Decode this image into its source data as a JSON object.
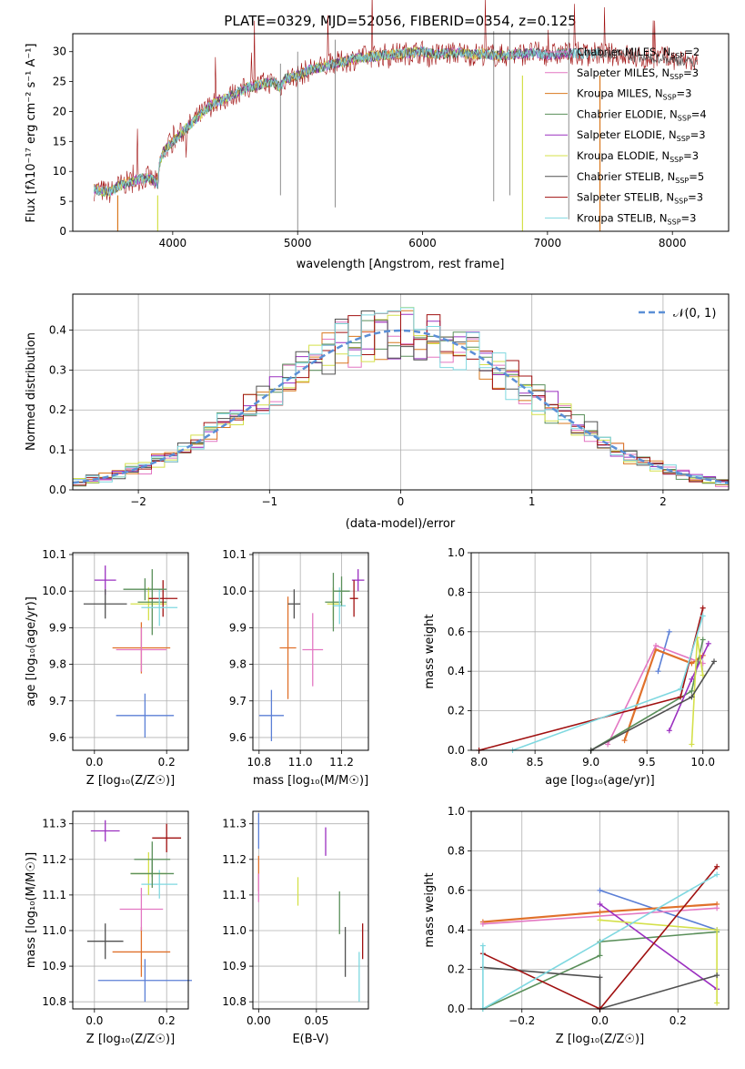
{
  "colors": {
    "Chabrier MILES": "#e377c2",
    "Salpeter MILES": "#e377c2",
    "Kroupa MILES": "#d9781e",
    "Chabrier ELODIE": "#5a8f5a",
    "Salpeter ELODIE": "#9b30c0",
    "Kroupa ELODIE": "#d4e04a",
    "Chabrier STELIB": "#505050",
    "Salpeter STELIB": "#a01010",
    "Kroupa STELIB": "#7fd8e0",
    "blue": "#5b7fd6",
    "orange": "#e0712b"
  },
  "chart_data": [
    {
      "type": "line",
      "title": "PLATE=0329, MJD=52056, FIBERID=0354, z=0.125",
      "xlabel": "wavelength [Angstrom, rest frame]",
      "ylabel": "Flux [fλ10⁻¹⁷ erg cm⁻² s⁻¹ A⁻¹]",
      "xlim": [
        3200,
        8450
      ],
      "ylim": [
        0,
        33
      ],
      "xticks": [
        "4000",
        "5000",
        "6000",
        "7000",
        "8000"
      ],
      "yticks": [
        "0",
        "5",
        "10",
        "15",
        "20",
        "25",
        "30"
      ],
      "legend": {
        "placement": "top-right",
        "entries": [
          {
            "pre": "Chabrier MILES, N",
            "post": "=2"
          },
          {
            "pre": "Salpeter MILES, N",
            "post": "=3"
          },
          {
            "pre": "Kroupa MILES, N",
            "post": "=3"
          },
          {
            "pre": "Chabrier ELODIE, N",
            "post": "=4"
          },
          {
            "pre": "Salpeter ELODIE, N",
            "post": "=3"
          },
          {
            "pre": "Kroupa ELODIE, N",
            "post": "=3"
          },
          {
            "pre": "Chabrier STELIB, N",
            "post": "=5"
          },
          {
            "pre": "Salpeter STELIB, N",
            "post": "=3"
          },
          {
            "pre": "Kroupa STELIB, N",
            "post": "=3"
          }
        ],
        "sub": "SSP"
      },
      "spectrum_anchors": {
        "x": [
          3370,
          3500,
          3560,
          3620,
          3700,
          3800,
          3880,
          3900,
          3950,
          4000,
          4100,
          4200,
          4300,
          4400,
          4500,
          4600,
          4700,
          4800,
          4862,
          4900,
          5000,
          5100,
          5200,
          5300,
          5400,
          5500,
          5600,
          5700,
          5800,
          5900,
          6000,
          6100,
          6200,
          6300,
          6400,
          6500,
          6600,
          6700,
          6800,
          6900,
          7000,
          7100,
          7200,
          7300,
          7400,
          7500,
          7600,
          7700,
          7800,
          7900,
          8000,
          8100,
          8200
        ],
        "y": [
          7,
          6.5,
          7.5,
          8,
          8.5,
          9,
          8,
          12,
          14,
          15,
          17,
          19,
          21,
          22,
          23,
          24,
          24.5,
          25,
          24,
          25.5,
          26,
          27,
          27.5,
          28,
          28.5,
          29,
          29.2,
          29.5,
          29.6,
          29.8,
          30,
          29.5,
          29.7,
          29.8,
          29.5,
          29.7,
          29.3,
          29.5,
          29.6,
          29.8,
          29.5,
          29.6,
          29.8,
          29.5,
          29.7,
          29.5,
          29.6,
          29,
          28.8,
          29,
          28.6,
          28.4,
          28.2
        ]
      },
      "gap_cuts": [
        3560,
        3880,
        6800,
        7420
      ]
    },
    {
      "type": "bar",
      "xlabel": "(data-model)/error",
      "ylabel": "Normed distribution",
      "xlim": [
        -2.5,
        2.5
      ],
      "ylim": [
        0,
        0.49
      ],
      "xticks": [
        "−2",
        "−1",
        "0",
        "1",
        "2"
      ],
      "yticks": [
        "0.0",
        "0.1",
        "0.2",
        "0.3",
        "0.4"
      ],
      "legend_label": "𝒩(0, 1)",
      "legend_placement": "top-right",
      "bin_width": 0.1
    },
    {
      "type": "scatter",
      "xlabel": "Z [log₁₀(Z/Z☉)]",
      "ylabel": "age  [log₁₀(age/yr)]",
      "xlim": [
        -0.06,
        0.26
      ],
      "ylim": [
        9.565,
        10.105
      ],
      "xticks": [
        "0.0",
        "0.2"
      ],
      "yticks": [
        "9.6",
        "9.7",
        "9.8",
        "9.9",
        "10.0",
        "10.1"
      ],
      "points": [
        {
          "x": 0.14,
          "y": 9.66,
          "xerr": 0.08,
          "yerr": 0.06
        },
        {
          "x": 0.13,
          "y": 9.845,
          "xerr": 0.08,
          "yerr": 0.07
        },
        {
          "x": 0.13,
          "y": 9.84,
          "xerr": 0.07,
          "yerr": 0.06
        },
        {
          "x": 0.15,
          "y": 9.965,
          "xerr": 0.05,
          "yerr": 0.045
        },
        {
          "x": 0.03,
          "y": 10.03,
          "xerr": 0.03,
          "yerr": 0.04
        },
        {
          "x": 0.16,
          "y": 9.97,
          "xerr": 0.04,
          "yerr": 0.09
        },
        {
          "x": 0.03,
          "y": 9.965,
          "xerr": 0.06,
          "yerr": 0.04
        },
        {
          "x": 0.19,
          "y": 9.98,
          "xerr": 0.04,
          "yerr": 0.05
        },
        {
          "x": 0.18,
          "y": 9.955,
          "xerr": 0.05,
          "yerr": 0.05
        },
        {
          "x": 0.14,
          "y": 10.005,
          "xerr": 0.06,
          "yerr": 0.03
        }
      ]
    },
    {
      "type": "scatter",
      "xlabel": "mass [log₁₀(M/M☉)]",
      "xlim": [
        10.77,
        11.33
      ],
      "ylim": [
        9.565,
        10.105
      ],
      "xticks": [
        "10.8",
        "11.0",
        "11.2"
      ],
      "yticks": [
        "9.6",
        "9.7",
        "9.8",
        "9.9",
        "10.0",
        "10.1"
      ],
      "points": [
        {
          "x": 10.86,
          "y": 9.66,
          "xerr": 0.06,
          "yerr": 0.07
        },
        {
          "x": 10.94,
          "y": 9.845,
          "xerr": 0.04,
          "yerr": 0.14
        },
        {
          "x": 11.06,
          "y": 9.84,
          "xerr": 0.05,
          "yerr": 0.1
        },
        {
          "x": 11.16,
          "y": 9.965,
          "xerr": 0.03,
          "yerr": 0.045
        },
        {
          "x": 11.28,
          "y": 10.03,
          "xerr": 0.03,
          "yerr": 0.03
        },
        {
          "x": 11.16,
          "y": 9.97,
          "xerr": 0.04,
          "yerr": 0.08
        },
        {
          "x": 10.97,
          "y": 9.965,
          "xerr": 0.03,
          "yerr": 0.04
        },
        {
          "x": 11.26,
          "y": 9.98,
          "xerr": 0.02,
          "yerr": 0.05
        },
        {
          "x": 11.19,
          "y": 9.96,
          "xerr": 0.03,
          "yerr": 0.05
        },
        {
          "x": 11.2,
          "y": 10.0,
          "xerr": 0.04,
          "yerr": 0.04
        }
      ]
    },
    {
      "type": "line",
      "xlabel": "age  [log₁₀(age/yr)]",
      "ylabel": "mass weight",
      "xlim": [
        7.93,
        10.23
      ],
      "ylim": [
        0,
        1.0
      ],
      "xticks": [
        "8.0",
        "8.5",
        "9.0",
        "9.5",
        "10.0"
      ],
      "yticks": [
        "0.0",
        "0.2",
        "0.4",
        "0.6",
        "0.8",
        "1.0"
      ],
      "series": [
        {
          "x": [
            9.6,
            9.7
          ],
          "y": [
            0.4,
            0.6
          ]
        },
        {
          "x": [
            9.3,
            9.58,
            9.9,
            10.0
          ],
          "y": [
            0.05,
            0.51,
            0.44,
            0.48
          ]
        },
        {
          "x": [
            9.15,
            9.58,
            10.0
          ],
          "y": [
            0.03,
            0.53,
            0.44
          ]
        },
        {
          "x": [
            9.0,
            9.9,
            10.0
          ],
          "y": [
            0.0,
            0.3,
            0.56
          ]
        },
        {
          "x": [
            9.7,
            9.9,
            10.05
          ],
          "y": [
            0.1,
            0.36,
            0.54
          ]
        },
        {
          "x": [
            9.9,
            9.95,
            10.0
          ],
          "y": [
            0.03,
            0.57,
            0.38
          ]
        },
        {
          "x": [
            9.0,
            9.9,
            10.1
          ],
          "y": [
            0.0,
            0.27,
            0.45
          ]
        },
        {
          "x": [
            8.0,
            9.8,
            10.0
          ],
          "y": [
            0.0,
            0.27,
            0.72
          ]
        },
        {
          "x": [
            8.3,
            9.8,
            10.0
          ],
          "y": [
            0.0,
            0.31,
            0.68
          ]
        }
      ]
    },
    {
      "type": "scatter",
      "xlabel": "Z [log₁₀(Z/Z☉)]",
      "ylabel": "mass [log₁₀(M/M☉)]",
      "xlim": [
        -0.06,
        0.26
      ],
      "ylim": [
        10.78,
        11.335
      ],
      "xticks": [
        "0.0",
        "0.2"
      ],
      "yticks": [
        "10.8",
        "10.9",
        "11.0",
        "11.1",
        "11.2",
        "11.3"
      ],
      "points": [
        {
          "x": 0.14,
          "y": 10.86,
          "xerr": 0.13,
          "yerr": 0.06
        },
        {
          "x": 0.13,
          "y": 10.94,
          "xerr": 0.08,
          "yerr": 0.07
        },
        {
          "x": 0.13,
          "y": 11.06,
          "xerr": 0.06,
          "yerr": 0.06
        },
        {
          "x": 0.15,
          "y": 11.16,
          "xerr": 0.05,
          "yerr": 0.06
        },
        {
          "x": 0.03,
          "y": 11.28,
          "xerr": 0.04,
          "yerr": 0.03
        },
        {
          "x": 0.16,
          "y": 11.2,
          "xerr": 0.05,
          "yerr": 0.05
        },
        {
          "x": 0.03,
          "y": 10.97,
          "xerr": 0.05,
          "yerr": 0.05
        },
        {
          "x": 0.2,
          "y": 11.26,
          "xerr": 0.04,
          "yerr": 0.04
        },
        {
          "x": 0.18,
          "y": 11.13,
          "xerr": 0.05,
          "yerr": 0.04
        },
        {
          "x": 0.16,
          "y": 11.16,
          "xerr": 0.06,
          "yerr": 0.04
        }
      ]
    },
    {
      "type": "scatter",
      "xlabel": "E(B-V)",
      "xlim": [
        -0.005,
        0.095
      ],
      "ylim": [
        10.78,
        11.335
      ],
      "xticks": [
        "0.00",
        "0.05"
      ],
      "yticks": [
        "10.8",
        "10.9",
        "11.0",
        "11.1",
        "11.2",
        "11.3"
      ],
      "points": [
        {
          "x": 0.0,
          "y": 11.28,
          "xerr": 0,
          "yerr": 0.05
        },
        {
          "x": 0.0,
          "y": 11.16,
          "xerr": 0,
          "yerr": 0.05
        },
        {
          "x": 0.0,
          "y": 11.12,
          "xerr": 0,
          "yerr": 0.04
        },
        {
          "x": 0.034,
          "y": 11.11,
          "xerr": 0,
          "yerr": 0.04
        },
        {
          "x": 0.058,
          "y": 11.25,
          "xerr": 0,
          "yerr": 0.04
        },
        {
          "x": 0.07,
          "y": 11.05,
          "xerr": 0,
          "yerr": 0.06
        },
        {
          "x": 0.075,
          "y": 10.94,
          "xerr": 0,
          "yerr": 0.07
        },
        {
          "x": 0.09,
          "y": 10.97,
          "xerr": 0,
          "yerr": 0.05
        },
        {
          "x": 0.087,
          "y": 10.87,
          "xerr": 0,
          "yerr": 0.07
        }
      ]
    },
    {
      "type": "line",
      "xlabel": "Z [log₁₀(Z/Z☉)]",
      "ylabel": "mass weight",
      "xlim": [
        -0.33,
        0.33
      ],
      "ylim": [
        0,
        1.0
      ],
      "xticks": [
        "−0.2",
        "0.0",
        "0.2"
      ],
      "yticks": [
        "0.0",
        "0.2",
        "0.4",
        "0.6",
        "0.8",
        "1.0"
      ],
      "series": [
        {
          "x": [
            0.0,
            0.3
          ],
          "y": [
            0.6,
            0.4
          ]
        },
        {
          "x": [
            -0.3,
            0.0,
            0.3
          ],
          "y": [
            0.44,
            0.49,
            0.53
          ]
        },
        {
          "x": [
            -0.3,
            0.3
          ],
          "y": [
            0.43,
            0.51
          ]
        },
        {
          "x": [
            -0.3,
            0.0,
            0.0,
            0.3
          ],
          "y": [
            0.0,
            0.27,
            0.34,
            0.39
          ]
        },
        {
          "x": [
            0.0,
            0.3
          ],
          "y": [
            0.53,
            0.1
          ]
        },
        {
          "x": [
            0.0,
            0.3,
            0.3
          ],
          "y": [
            0.45,
            0.4,
            0.03
          ]
        },
        {
          "x": [
            -0.3,
            0.0,
            0.0,
            0.3
          ],
          "y": [
            0.21,
            0.16,
            0.0,
            0.17
          ]
        },
        {
          "x": [
            -0.3,
            0.0,
            0.3
          ],
          "y": [
            0.28,
            0.0,
            0.72
          ]
        },
        {
          "x": [
            -0.3,
            -0.3,
            0.3
          ],
          "y": [
            0.32,
            0.0,
            0.68
          ]
        }
      ]
    }
  ]
}
